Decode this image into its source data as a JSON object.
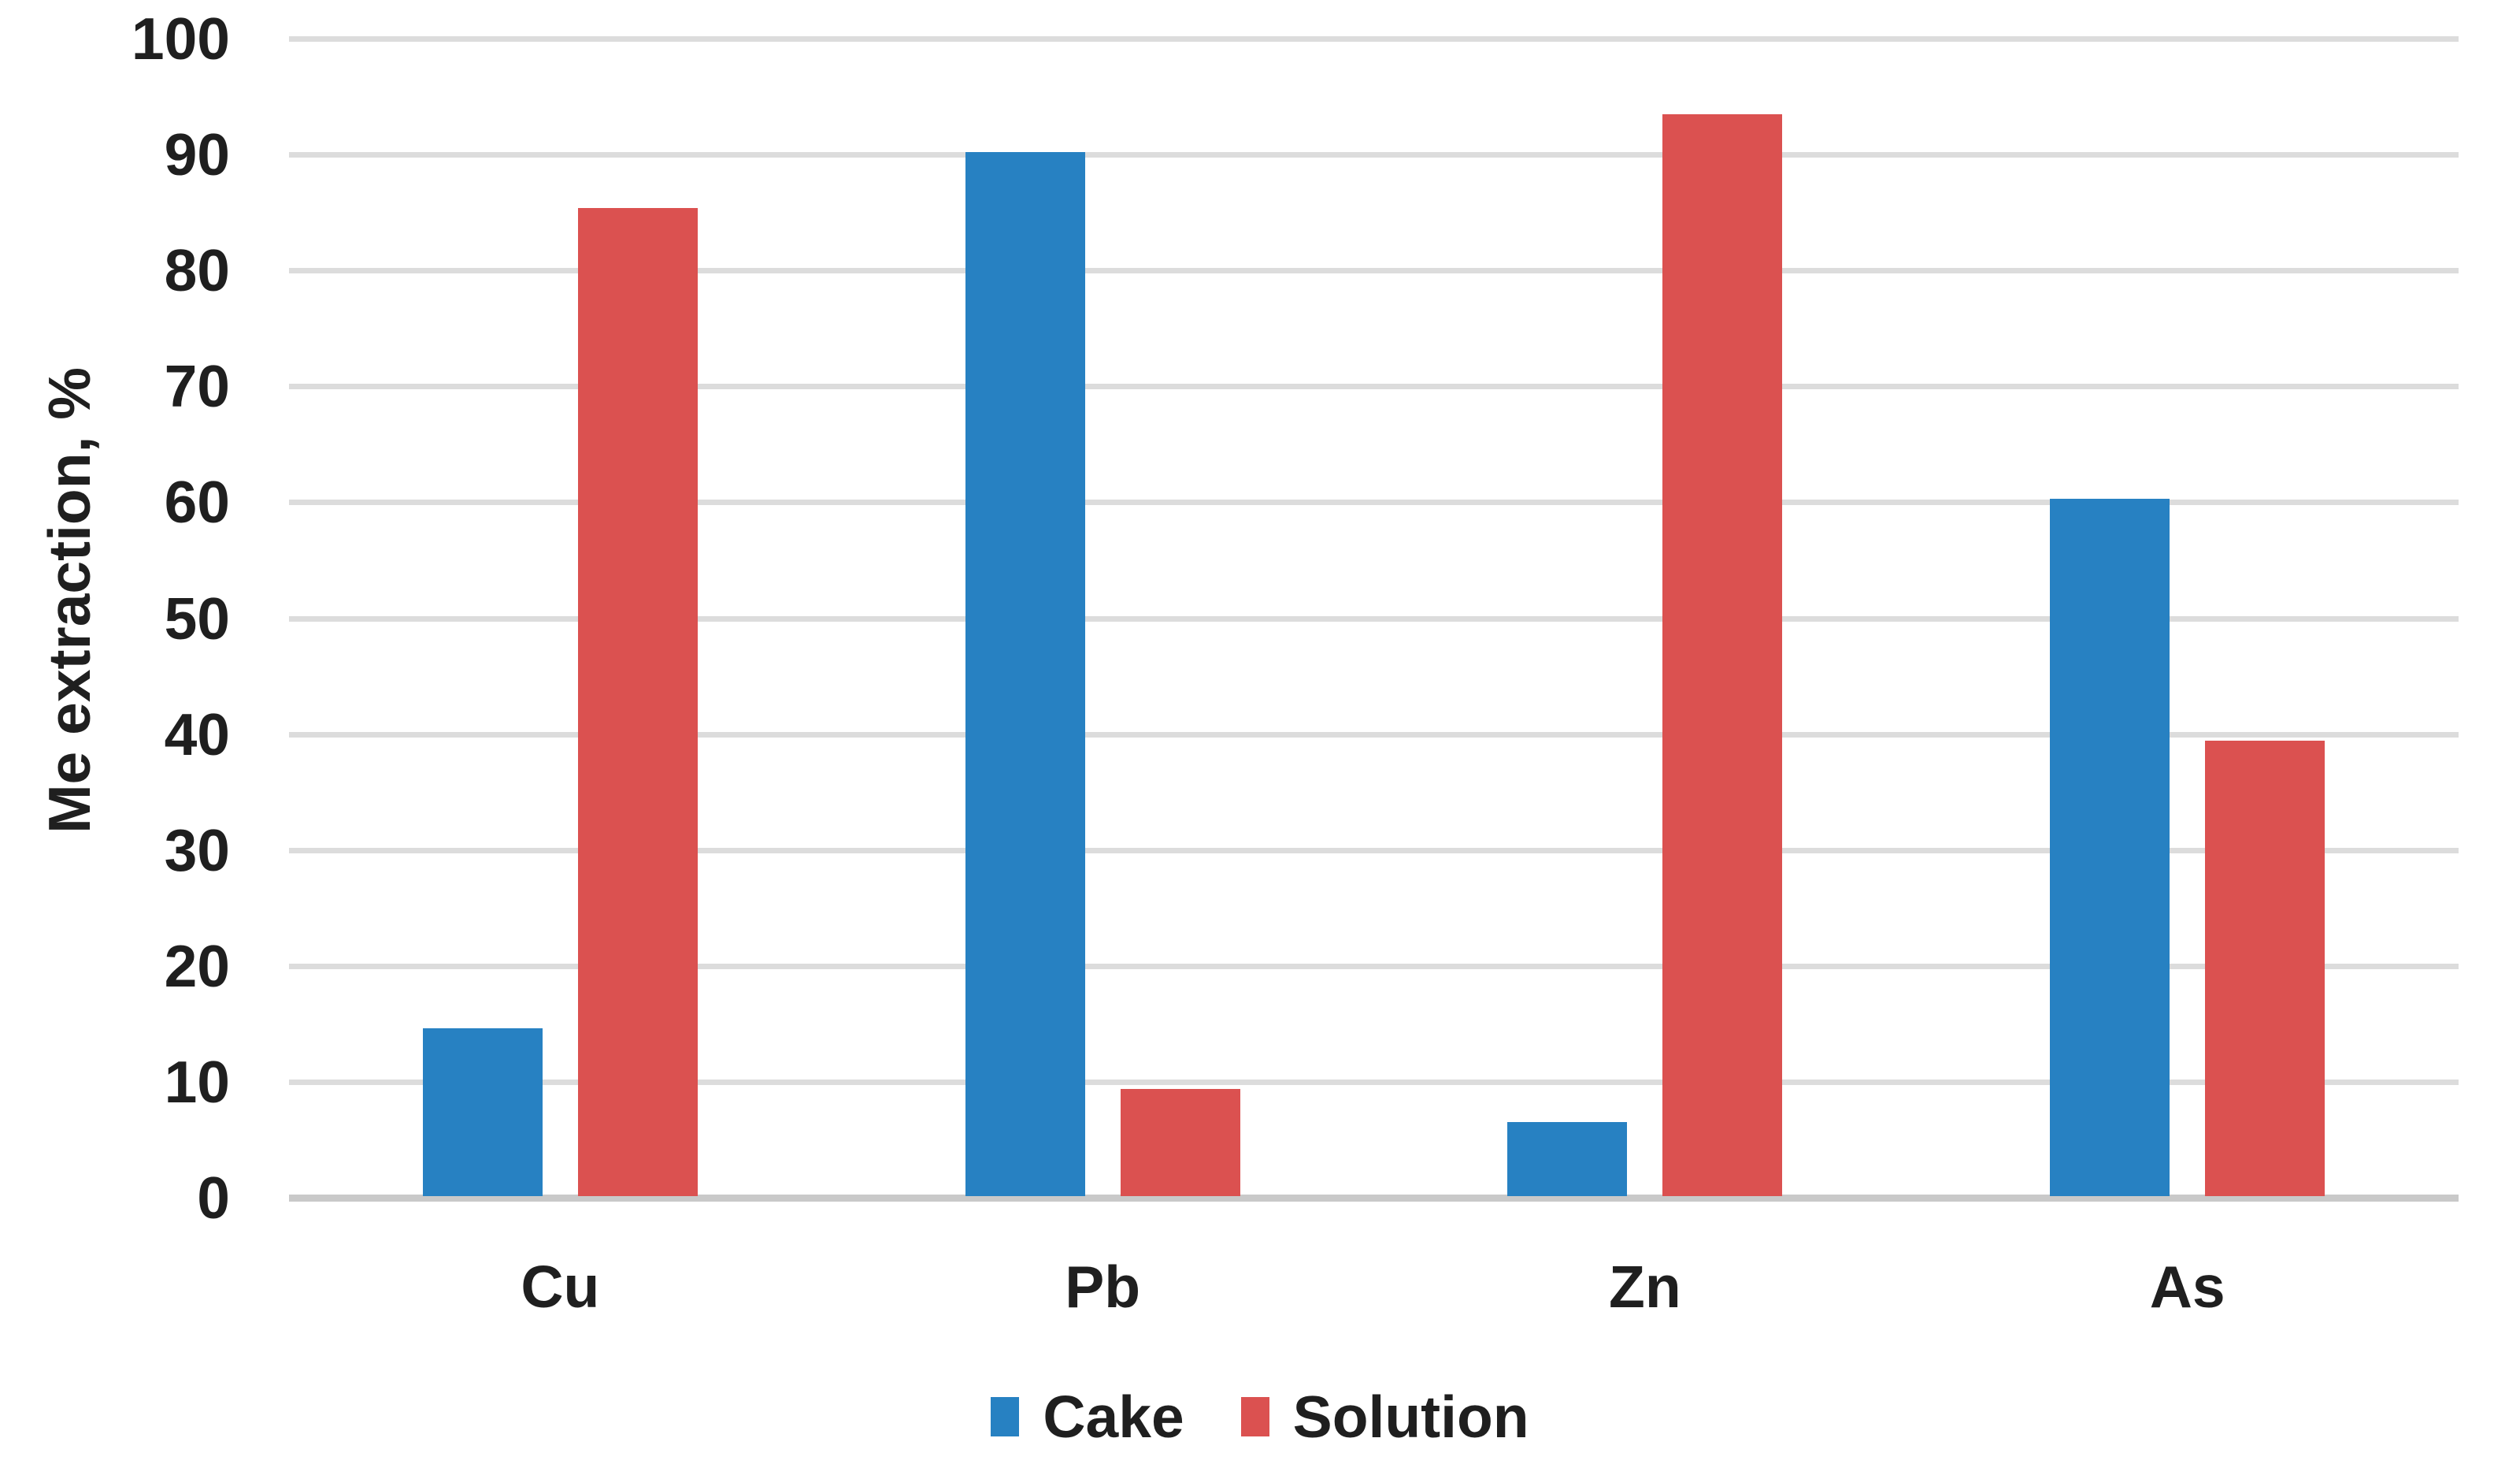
{
  "chart_data": {
    "type": "bar",
    "title": "",
    "ylabel": "Me extraction, %",
    "xlabel": "",
    "categories": [
      "Cu",
      "Pb",
      "Zn",
      "As"
    ],
    "series": [
      {
        "name": "Cake",
        "color": "#2781C2",
        "values": [
          14.6,
          90.2,
          6.5,
          60.3
        ]
      },
      {
        "name": "Solution",
        "color": "#DB5150",
        "values": [
          85.4,
          9.4,
          93.5,
          39.4
        ]
      }
    ],
    "ylim": [
      0,
      100
    ],
    "ytick_step": 10,
    "yticks": [
      "0",
      "10",
      "20",
      "30",
      "40",
      "50",
      "60",
      "70",
      "80",
      "90",
      "100"
    ],
    "grid": true,
    "gridline_color": "#DCDCDC",
    "axis_line_color": "#C9C9C9",
    "text_color": "#1F1F1F",
    "legend_position": "bottom"
  }
}
